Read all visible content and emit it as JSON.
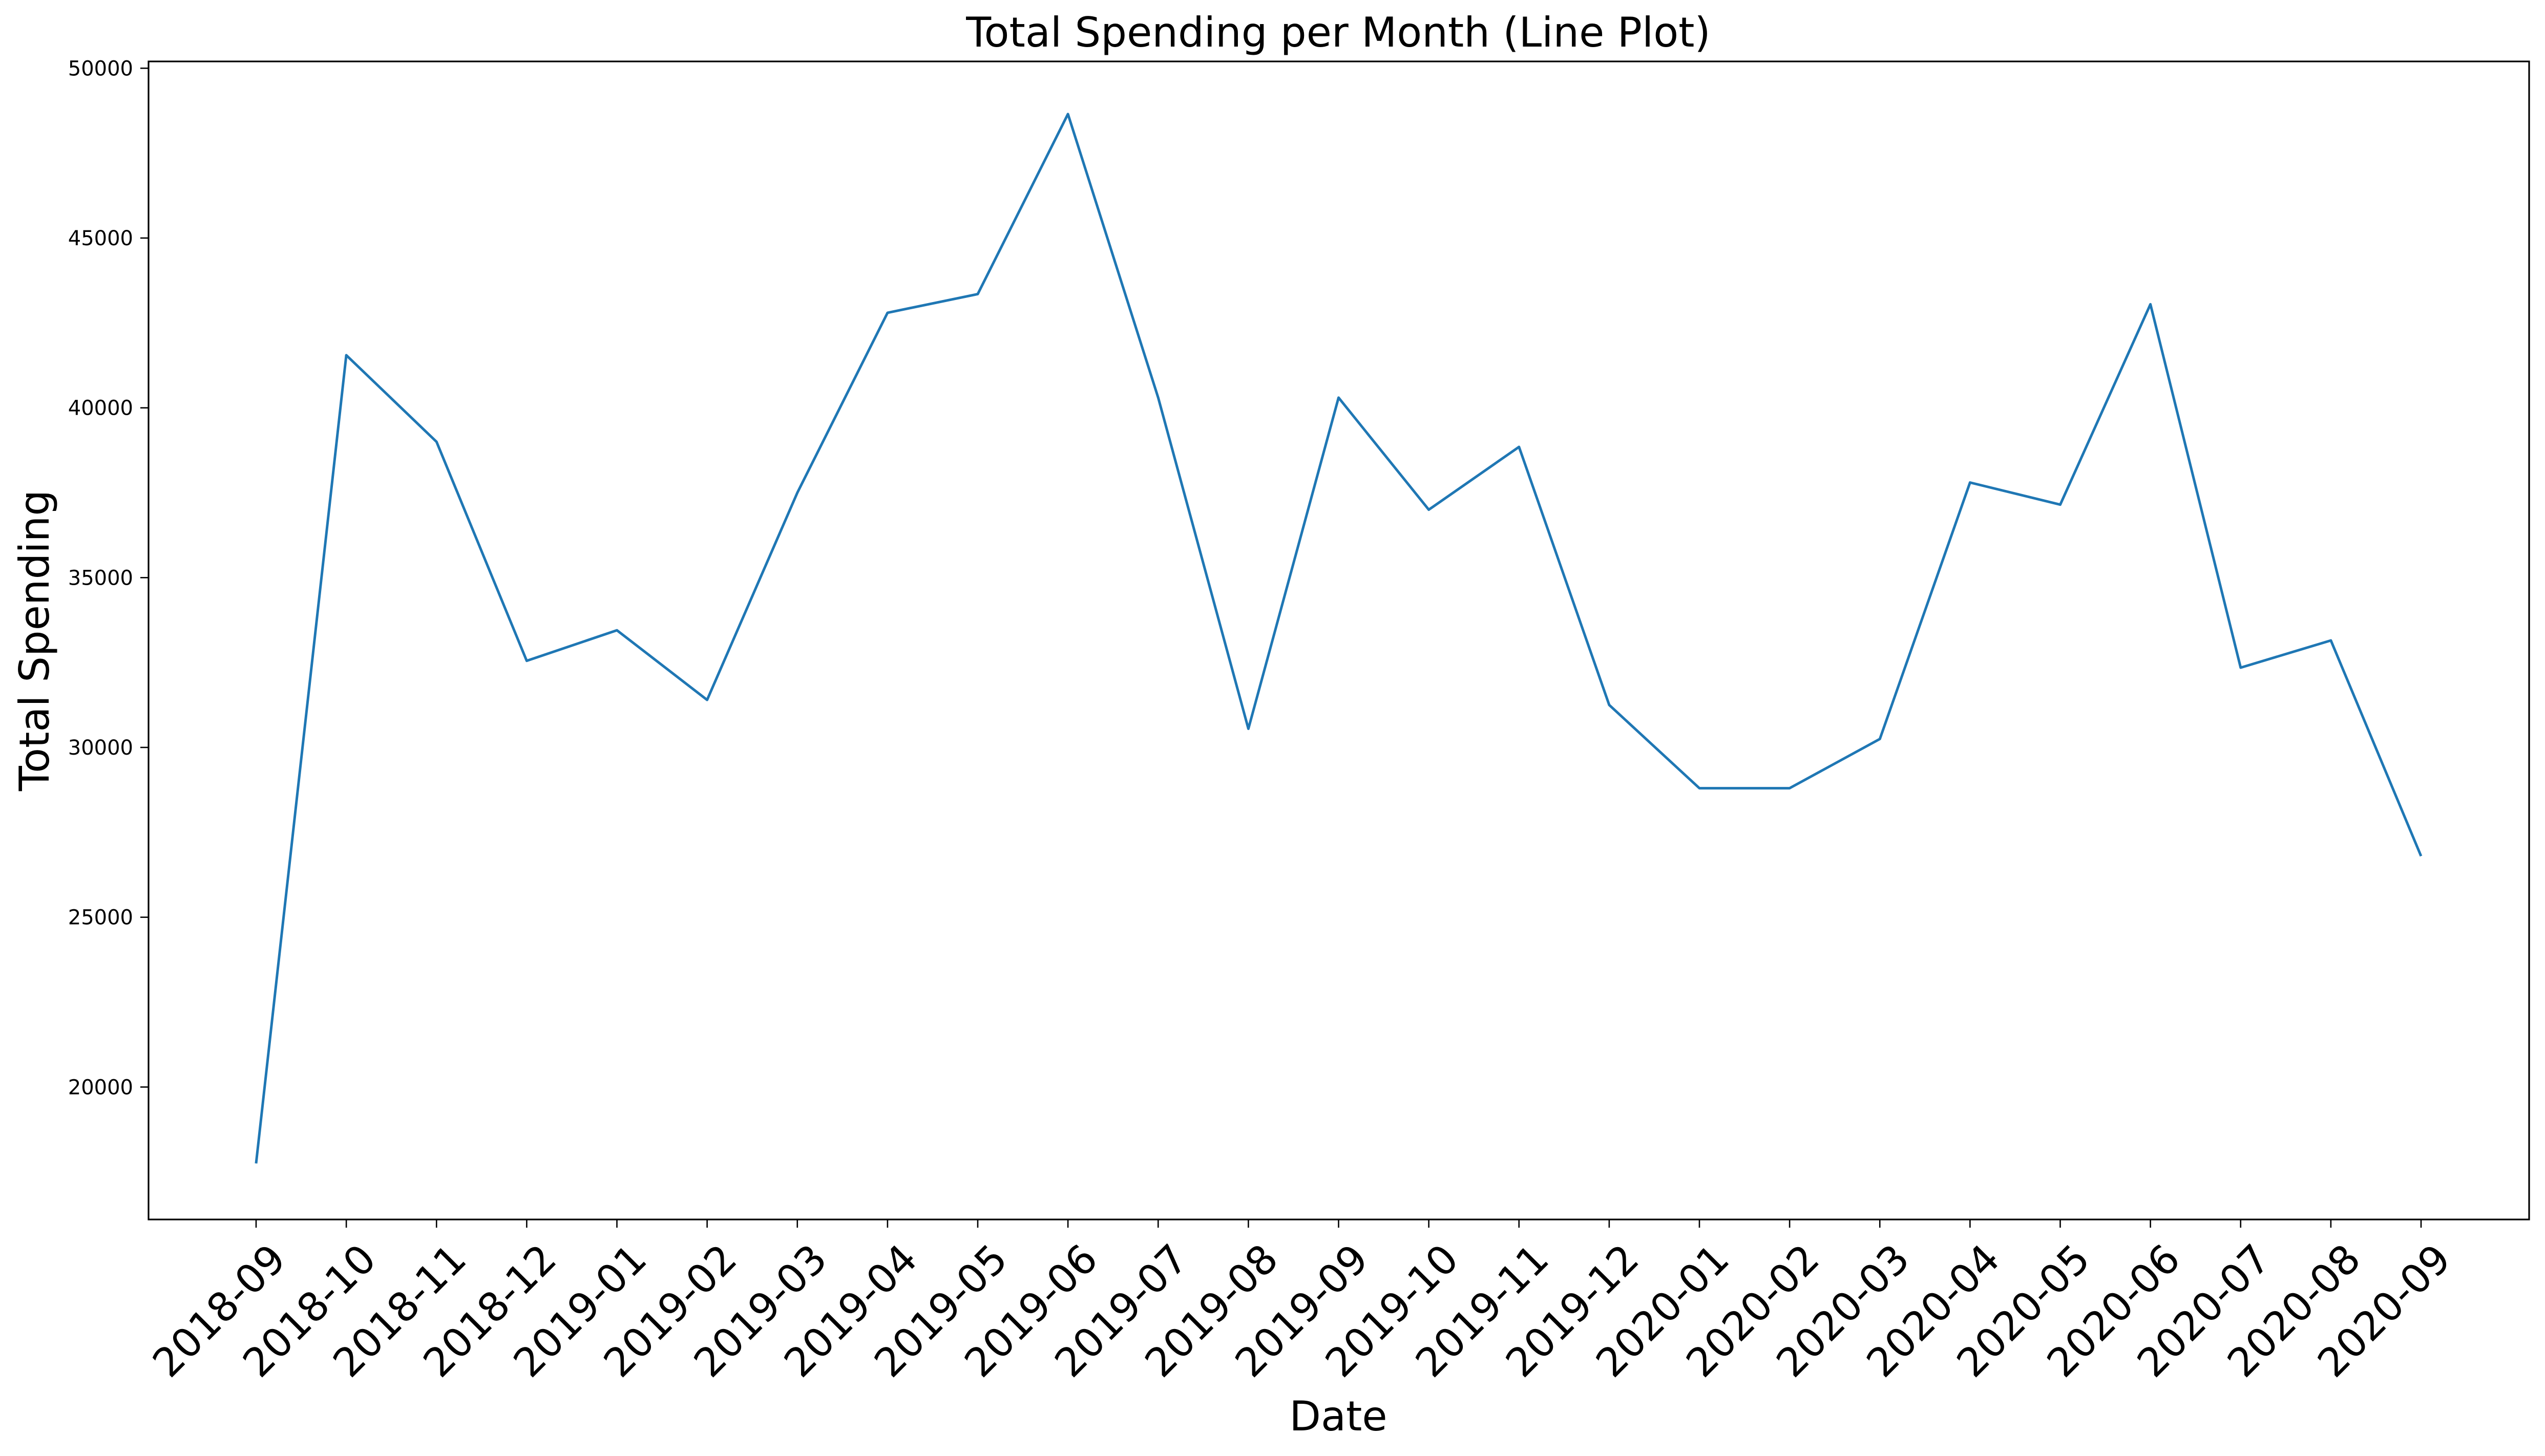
{
  "chart_data": {
    "type": "line",
    "title": "Total Spending per Month (Line Plot)",
    "xlabel": "Date",
    "ylabel": "Total Spending",
    "x": [
      "2018-09",
      "2018-10",
      "2018-11",
      "2018-12",
      "2019-01",
      "2019-02",
      "2019-03",
      "2019-04",
      "2019-05",
      "2019-06",
      "2019-07",
      "2019-08",
      "2019-09",
      "2019-10",
      "2019-11",
      "2019-12",
      "2020-01",
      "2020-02",
      "2020-03",
      "2020-04",
      "2020-05",
      "2020-06",
      "2020-07",
      "2020-08",
      "2020-09"
    ],
    "series": [
      {
        "values": [
          17750,
          41550,
          39000,
          32550,
          33450,
          31400,
          37500,
          42800,
          43350,
          48650,
          40300,
          30550,
          40300,
          37000,
          38850,
          31250,
          28800,
          28800,
          30250,
          37800,
          37150,
          43050,
          32350,
          33150,
          26800
        ]
      }
    ],
    "ylim": [
      16100,
      50200
    ],
    "yticks": [
      20000,
      25000,
      30000,
      35000,
      40000,
      45000,
      50000
    ],
    "grid": false,
    "colors": {
      "series": "#1f77b4"
    }
  }
}
